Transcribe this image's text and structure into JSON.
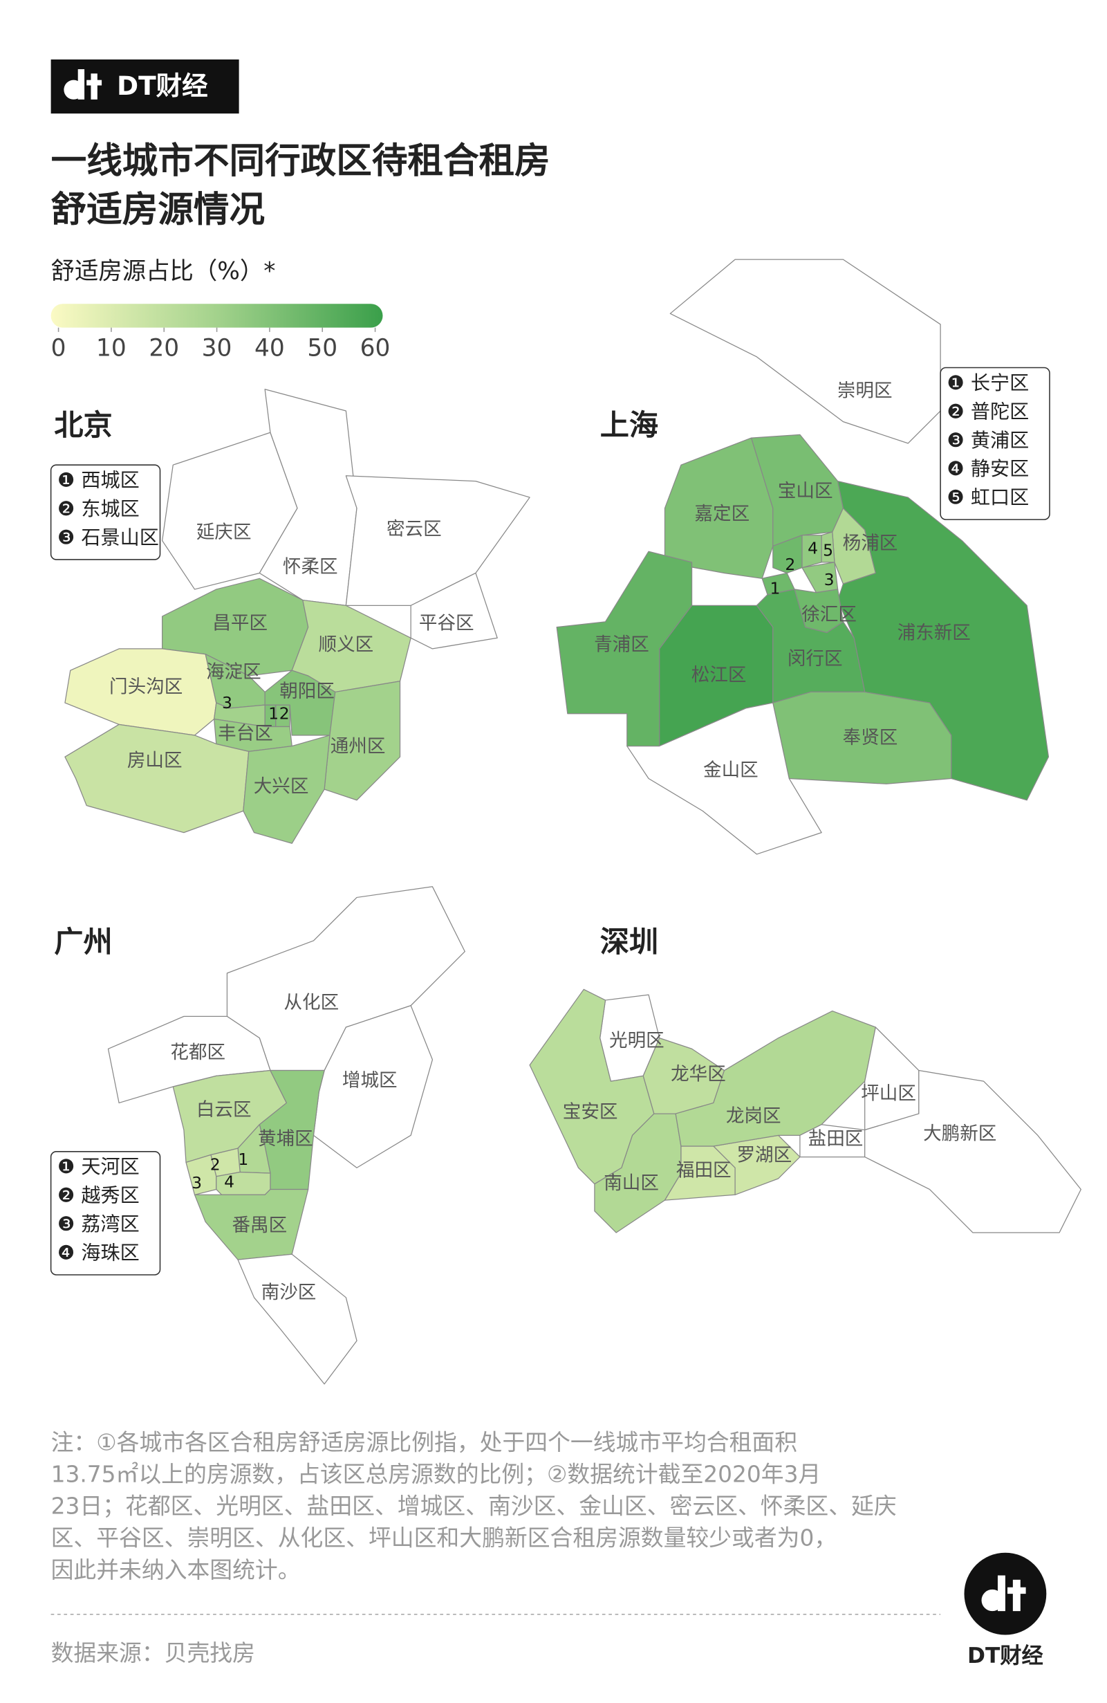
{
  "brand": "DT财经",
  "title_lines": [
    "一线城市不同行政区待租合租房",
    "舒适房源情况"
  ],
  "legend": {
    "label": "舒适房源占比（%）*",
    "range": [
      0,
      60
    ],
    "ticks": [
      0,
      10,
      20,
      30,
      40,
      50,
      60
    ],
    "colors": [
      "#fbfac4",
      "#a3d28c",
      "#3a9f4a"
    ],
    "no_data_color": "#ffffff"
  },
  "maps": [
    {
      "city": "北京",
      "districts": [
        {
          "name": "延庆区",
          "value": null
        },
        {
          "name": "怀柔区",
          "value": null
        },
        {
          "name": "密云区",
          "value": null
        },
        {
          "name": "平谷区",
          "value": null
        },
        {
          "name": "昌平区",
          "value": 35
        },
        {
          "name": "顺义区",
          "value": 22
        },
        {
          "name": "门头沟区",
          "value": 4
        },
        {
          "name": "海淀区",
          "value": 35
        },
        {
          "name": "朝阳区",
          "value": 38
        },
        {
          "name": "西城区",
          "value": 40,
          "key": "❶",
          "map_label": "1"
        },
        {
          "name": "东城区",
          "value": 38,
          "key": "❷",
          "map_label": "2"
        },
        {
          "name": "石景山区",
          "value": 30,
          "key": "❸",
          "map_label": "3"
        },
        {
          "name": "丰台区",
          "value": 33
        },
        {
          "name": "房山区",
          "value": 17
        },
        {
          "name": "通州区",
          "value": 30
        },
        {
          "name": "大兴区",
          "value": 32
        }
      ]
    },
    {
      "city": "上海",
      "districts": [
        {
          "name": "崇明区",
          "value": null
        },
        {
          "name": "嘉定区",
          "value": 40
        },
        {
          "name": "宝山区",
          "value": 42
        },
        {
          "name": "杨浦区",
          "value": 25
        },
        {
          "name": "浦东新区",
          "value": 55
        },
        {
          "name": "青浦区",
          "value": 48
        },
        {
          "name": "松江区",
          "value": 57
        },
        {
          "name": "闵行区",
          "value": 52
        },
        {
          "name": "徐汇区",
          "value": 45
        },
        {
          "name": "长宁区",
          "value": 45,
          "key": "❶",
          "map_label": "1"
        },
        {
          "name": "普陀区",
          "value": 45,
          "key": "❷",
          "map_label": "2"
        },
        {
          "name": "黄浦区",
          "value": 35,
          "key": "❸",
          "map_label": "3"
        },
        {
          "name": "静安区",
          "value": 35,
          "key": "❹",
          "map_label": "4"
        },
        {
          "name": "虹口区",
          "value": 30,
          "key": "❺",
          "map_label": "5"
        },
        {
          "name": "奉贤区",
          "value": 40
        },
        {
          "name": "金山区",
          "value": null
        }
      ]
    },
    {
      "city": "广州",
      "districts": [
        {
          "name": "从化区",
          "value": null
        },
        {
          "name": "花都区",
          "value": null
        },
        {
          "name": "增城区",
          "value": null
        },
        {
          "name": "白云区",
          "value": 20
        },
        {
          "name": "黄埔区",
          "value": 35
        },
        {
          "name": "天河区",
          "value": 25,
          "key": "❶",
          "map_label": "1"
        },
        {
          "name": "越秀区",
          "value": 15,
          "key": "❷",
          "map_label": "2"
        },
        {
          "name": "荔湾区",
          "value": 15,
          "key": "❸",
          "map_label": "3"
        },
        {
          "name": "海珠区",
          "value": 20,
          "key": "❹",
          "map_label": "4"
        },
        {
          "name": "番禺区",
          "value": 30
        },
        {
          "name": "南沙区",
          "value": null
        }
      ]
    },
    {
      "city": "深圳",
      "districts": [
        {
          "name": "光明区",
          "value": null
        },
        {
          "name": "宝安区",
          "value": 22
        },
        {
          "name": "龙华区",
          "value": 20
        },
        {
          "name": "南山区",
          "value": 25
        },
        {
          "name": "福田区",
          "value": 15
        },
        {
          "name": "罗湖区",
          "value": 15
        },
        {
          "name": "龙岗区",
          "value": 25
        },
        {
          "name": "盐田区",
          "value": null
        },
        {
          "name": "坪山区",
          "value": null
        },
        {
          "name": "大鹏新区",
          "value": null
        }
      ]
    }
  ],
  "note_lines": [
    "注：①各城市各区合租房舒适房源比例指，处于四个一线城市平均合租面积",
    "13.75㎡以上的房源数，占该区总房源数的比例；②数据统计截至2020年3月",
    "23日；花都区、光明区、盐田区、增城区、南沙区、金山区、密云区、怀柔区、延庆",
    "区、平谷区、崇明区、从化区、坪山区和大鹏新区合租房源数量较少或者为0，",
    "因此并未纳入本图统计。"
  ],
  "source": "数据来源：贝壳找房"
}
